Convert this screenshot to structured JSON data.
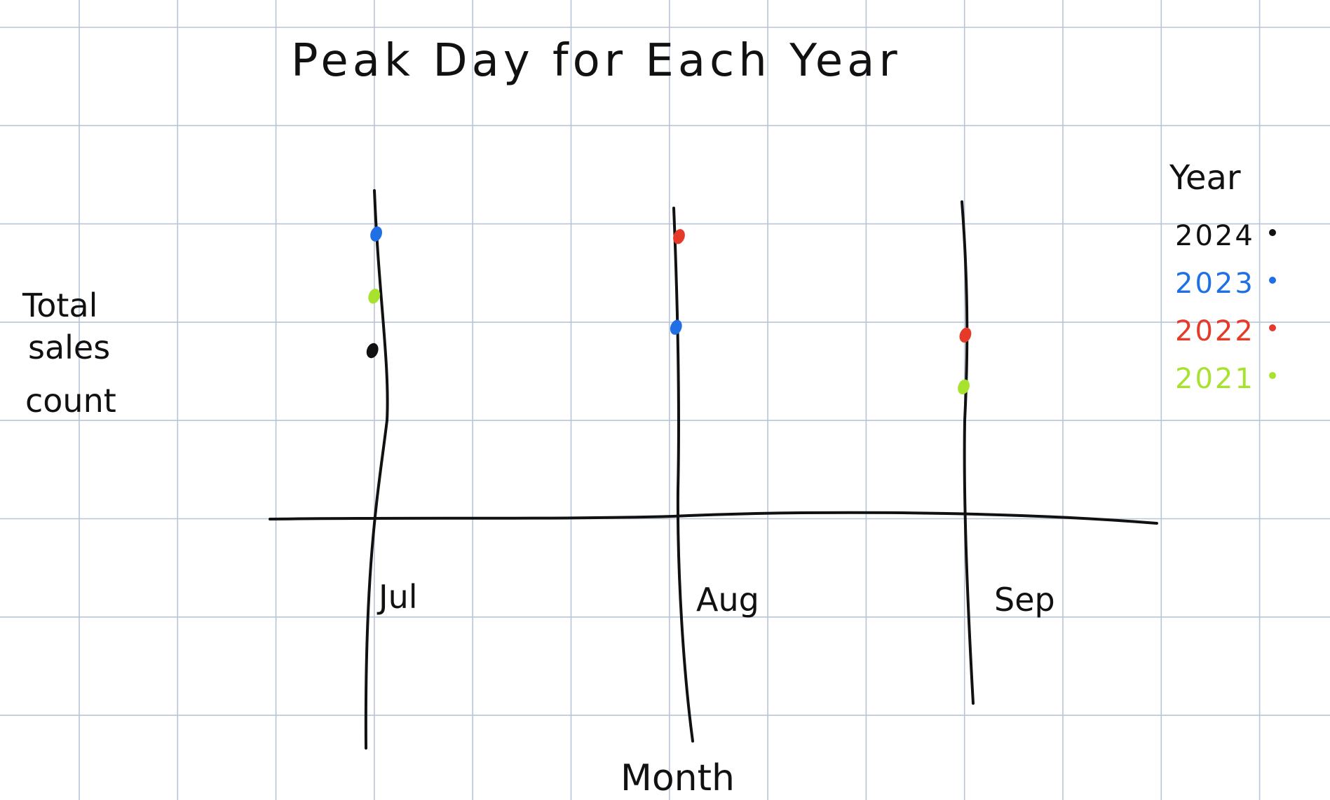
{
  "chart_data": {
    "type": "scatter",
    "title": "Peak Day for Each Year",
    "xlabel": "Month",
    "ylabel_lines": [
      "Total",
      "sales",
      "count"
    ],
    "categories": [
      "Jul",
      "Aug",
      "Sep"
    ],
    "grid": true,
    "legend_title": "Year",
    "legend_placement": "right",
    "series": [
      {
        "name": "2024",
        "color": "#111111",
        "points": [
          {
            "x": "Jul",
            "y": 1.3
          }
        ]
      },
      {
        "name": "2023",
        "color": "#1f6fe5",
        "points": [
          {
            "x": "Jul",
            "y": 2.2
          },
          {
            "x": "Aug",
            "y": 1.48
          }
        ]
      },
      {
        "name": "2022",
        "color": "#e53a2a",
        "points": [
          {
            "x": "Aug",
            "y": 2.18
          },
          {
            "x": "Sep",
            "y": 1.42
          }
        ]
      },
      {
        "name": "2021",
        "color": "#a6e22e",
        "points": [
          {
            "x": "Jul",
            "y": 1.72
          },
          {
            "x": "Sep",
            "y": 1.02
          }
        ]
      }
    ]
  }
}
